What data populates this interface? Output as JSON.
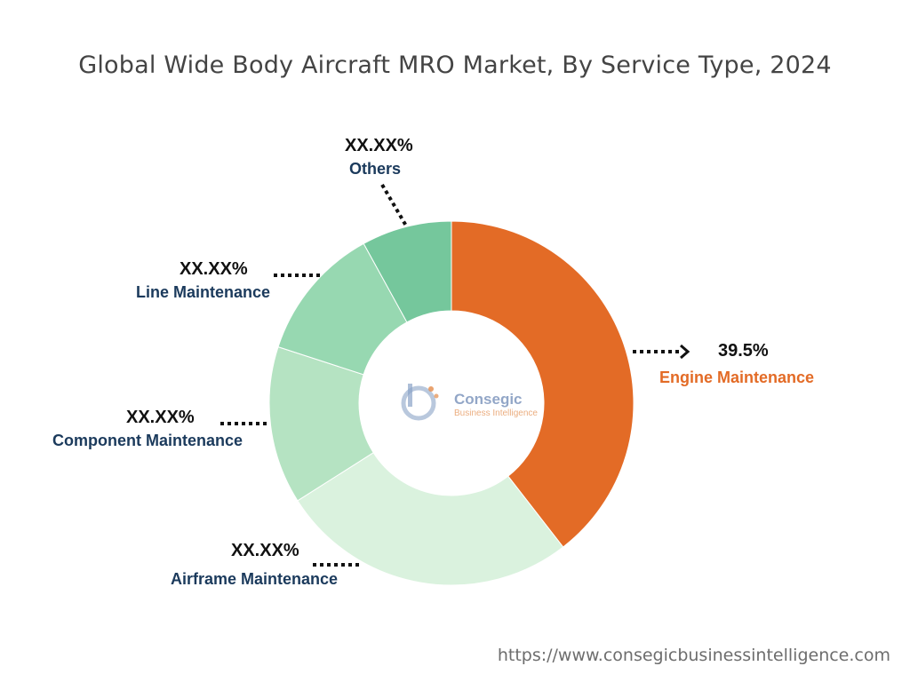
{
  "chart_data": {
    "type": "pie",
    "title": "Global Wide Body Aircraft MRO Market, By Service Type, 2024",
    "categories": [
      "Engine Maintenance",
      "Airframe Maintenance",
      "Component Maintenance",
      "Line Maintenance",
      "Others"
    ],
    "values": [
      39.5,
      26.5,
      14.0,
      12.0,
      8.0
    ],
    "value_labels": [
      "39.5%",
      "XX.XX%",
      "XX.XX%",
      "XX.XX%",
      "XX.XX%"
    ],
    "colors": [
      "#e36b26",
      "#daf2de",
      "#b5e3c2",
      "#97d8b1",
      "#75c79c"
    ],
    "donut": true
  },
  "logo": {
    "name": "Consegic",
    "tagline": "Business Intelligence"
  },
  "source_url": "https://www.consegicbusinessintelligence.com"
}
